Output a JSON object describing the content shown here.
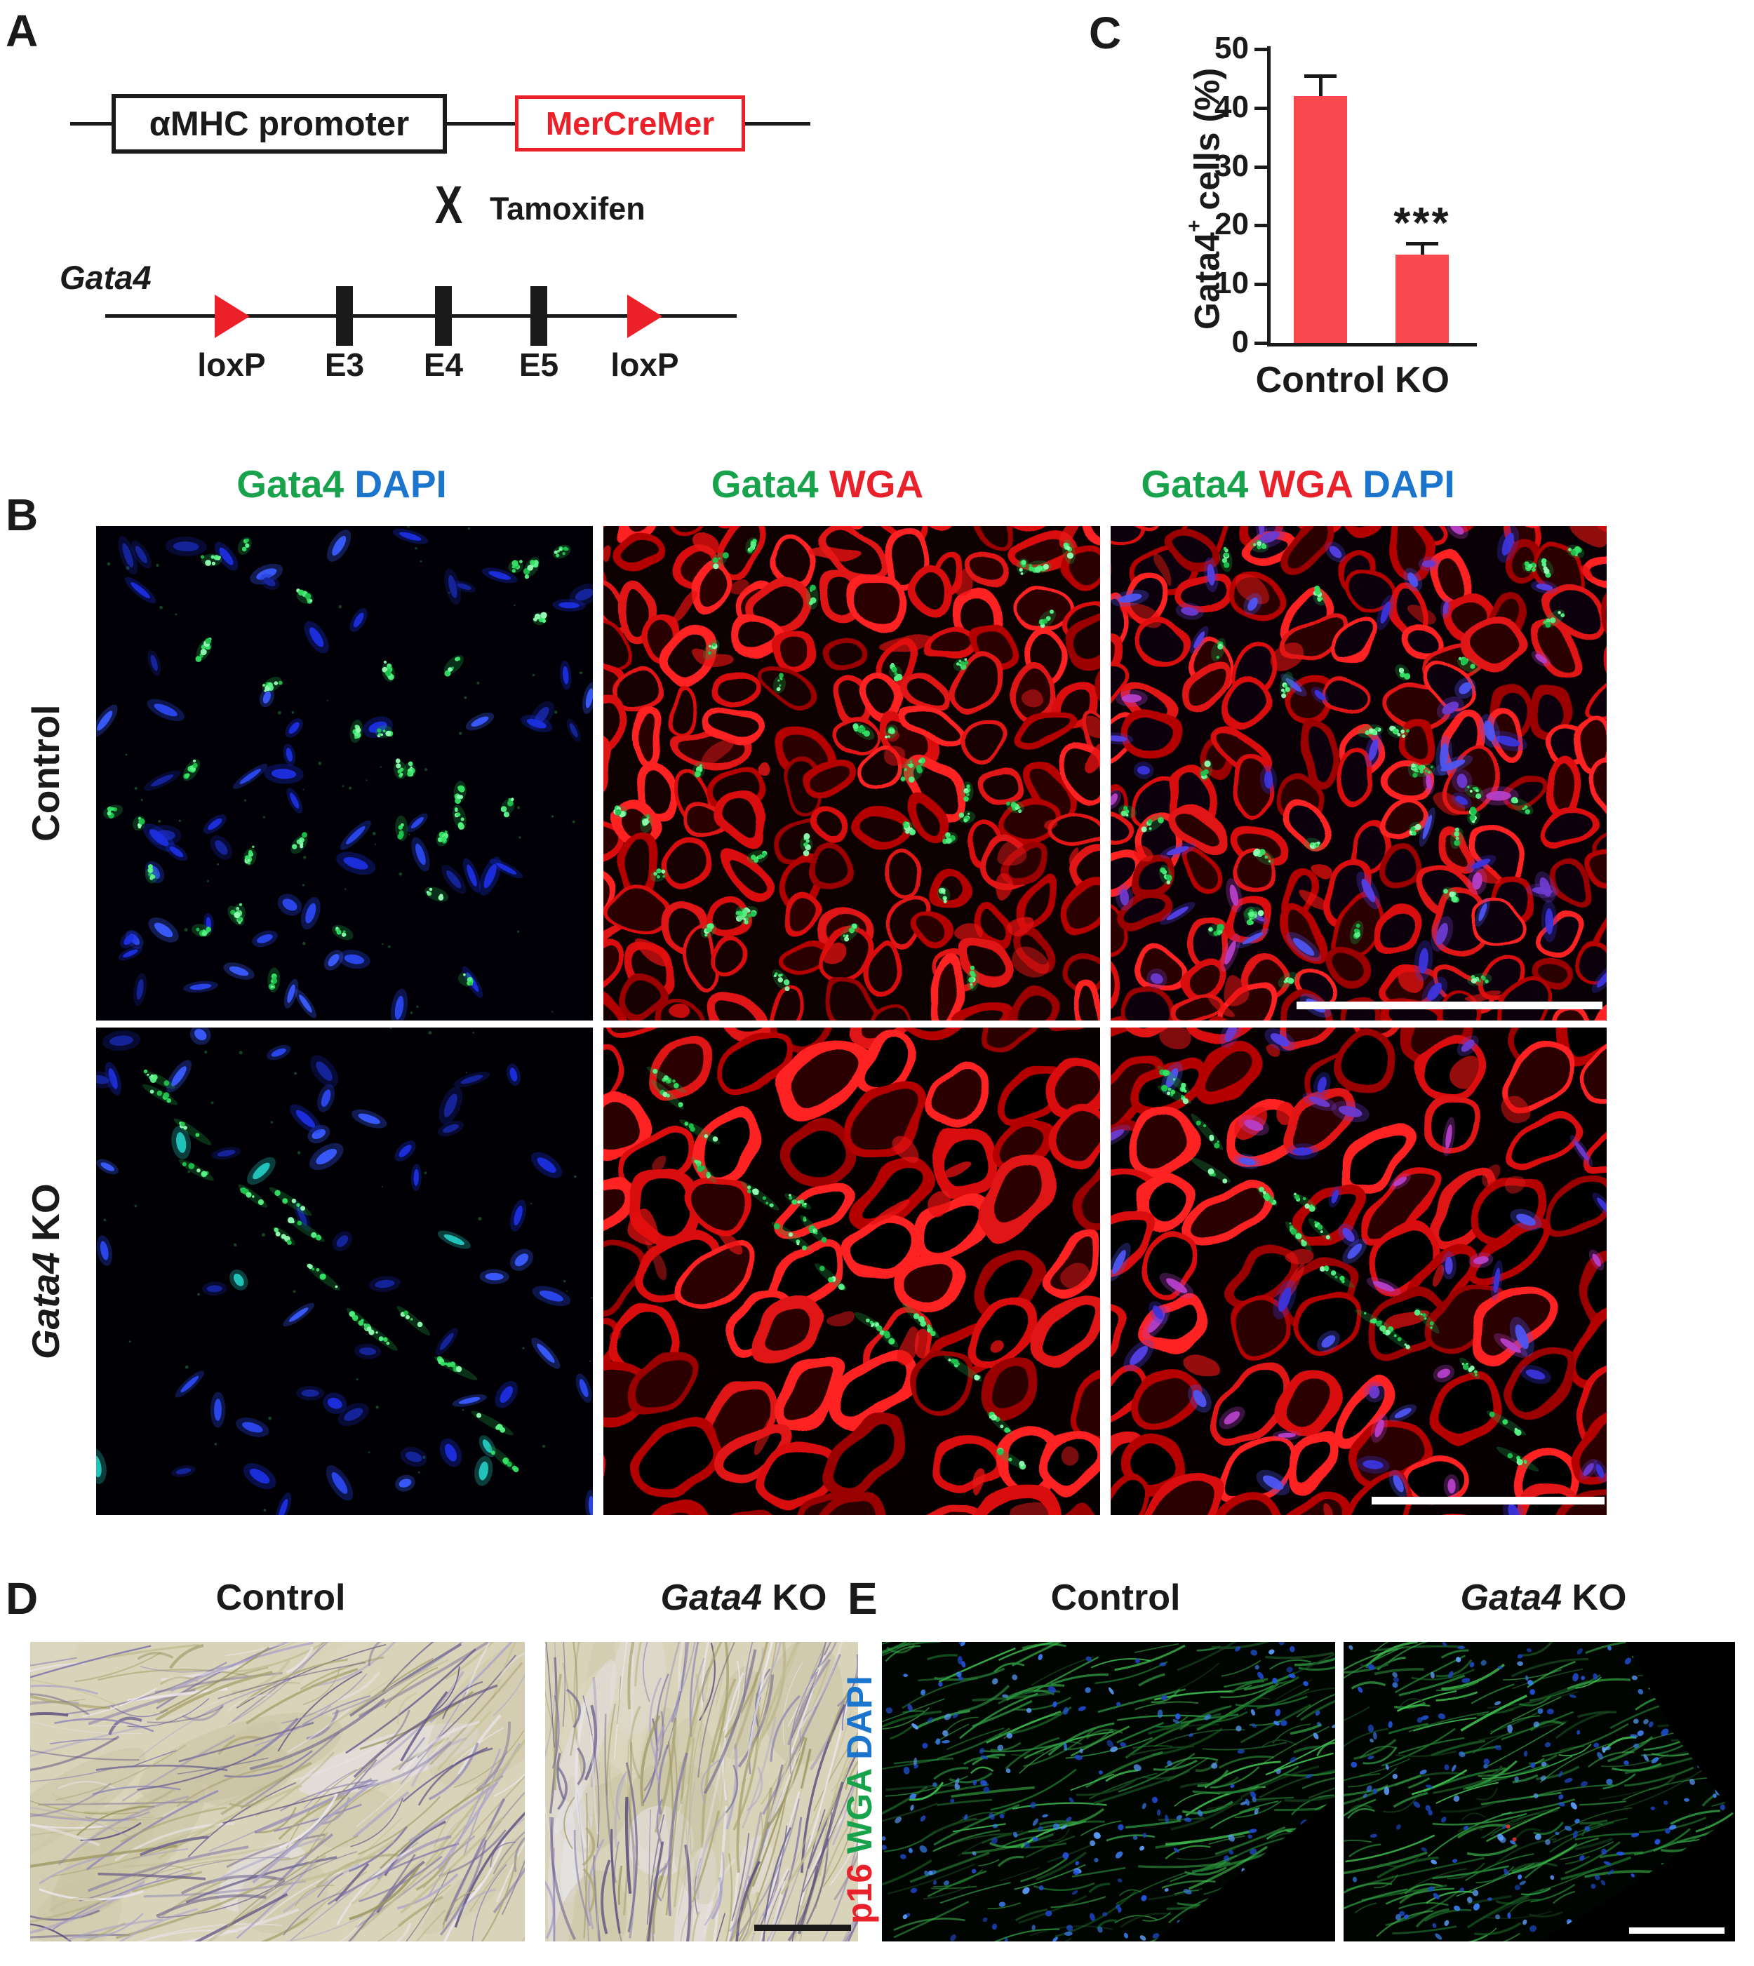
{
  "colors": {
    "gata4_green": "#17a24b",
    "dapi_blue": "#1b75cd",
    "wga_red": "#e8212a",
    "loxp_red": "#ec2028",
    "bar_red": "#f9494f",
    "ink": "#1a1a1a"
  },
  "panelA": {
    "label": "A",
    "promoter_box": "αMHC promoter",
    "cre_box": "MerCreMer",
    "cross_symbol": "X",
    "cross_label": "Tamoxifen",
    "gene_label": "Gata4",
    "site_labels": [
      "loxP",
      "E3",
      "E4",
      "E5",
      "loxP"
    ]
  },
  "panelB": {
    "label": "B",
    "column_headers": [
      [
        {
          "text": "Gata4 ",
          "color": "#17a24b"
        },
        {
          "text": "DAPI",
          "color": "#1b75cd"
        }
      ],
      [
        {
          "text": "Gata4 ",
          "color": "#17a24b"
        },
        {
          "text": "WGA",
          "color": "#e8212a"
        }
      ],
      [
        {
          "text": "Gata4 ",
          "color": "#17a24b"
        },
        {
          "text": "WGA ",
          "color": "#e8212a"
        },
        {
          "text": "DAPI",
          "color": "#1b75cd"
        }
      ]
    ],
    "row_labels": [
      [
        {
          "text": "Control"
        }
      ],
      [
        {
          "text": "Gata4",
          "italic": true
        },
        {
          "text": " KO"
        }
      ]
    ]
  },
  "panelC": {
    "label": "C"
  },
  "chart_data": {
    "type": "bar",
    "title": "",
    "categories": [
      "Control",
      "KO"
    ],
    "values": [
      42,
      15
    ],
    "errors": [
      3.5,
      2
    ],
    "bar_color": "#f9494f",
    "ylabel": "Gata4+ cells (%)",
    "ylabel_rich": [
      {
        "text": "Gata4"
      },
      {
        "text": "+",
        "super": true
      },
      {
        "text": " cells (%)"
      }
    ],
    "ylim": [
      0,
      50
    ],
    "yticks": [
      0,
      10,
      20,
      30,
      40,
      50
    ],
    "grid": false,
    "legend": null,
    "significance": {
      "label": "***",
      "category": "KO"
    }
  },
  "panelD": {
    "label": "D",
    "column_headers": [
      [
        {
          "text": "Control"
        }
      ],
      [
        {
          "text": "Gata4",
          "italic": true
        },
        {
          "text": " KO"
        }
      ]
    ]
  },
  "panelE": {
    "label": "E",
    "column_headers": [
      [
        {
          "text": "Control"
        }
      ],
      [
        {
          "text": "Gata4",
          "italic": true
        },
        {
          "text": " KO"
        }
      ]
    ],
    "side_label": [
      {
        "text": "p16 ",
        "color": "#e8212a"
      },
      {
        "text": "WGA ",
        "color": "#17a24b"
      },
      {
        "text": "DAPI",
        "color": "#1b75cd"
      }
    ]
  }
}
